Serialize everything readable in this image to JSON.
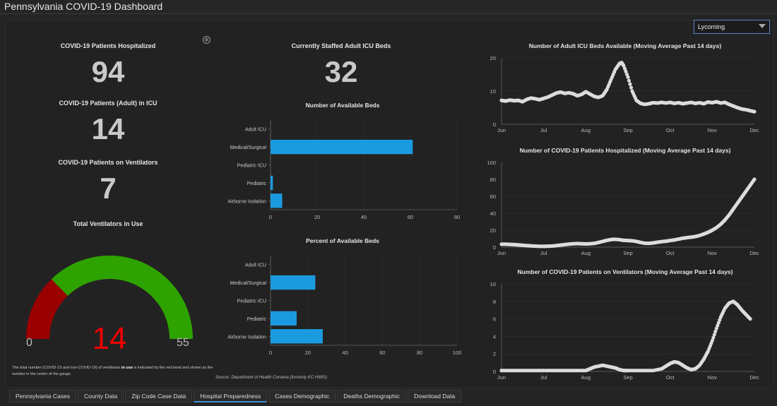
{
  "app": {
    "title": "Pennsylvania COVID-19 Dashboard"
  },
  "filter": {
    "county": "Lycoming"
  },
  "kpis": {
    "hospitalized": {
      "label": "COVID-19 Patients Hospitalized",
      "value": "94"
    },
    "icu": {
      "label": "COVID-19 Patients (Adult) in ICU",
      "value": "14"
    },
    "ventilators": {
      "label": "COVID-19 Patients on Ventilators",
      "value": "7"
    },
    "staffed_icu": {
      "label": "Currently Staffed Adult ICU Beds",
      "value": "32"
    }
  },
  "gauge": {
    "title": "Total Ventilators in Use",
    "value": "14",
    "min": "0",
    "max": "55",
    "value_num": 14,
    "max_num": 55,
    "red_band_end": 14,
    "colors": {
      "red": "#9b0000",
      "green": "#2ea300",
      "value": "#e00000"
    },
    "note_pre": "The total number (COVID-19 and non-COVID-19) of ventilators ",
    "note_bold": "in use",
    "note_post": " is indicated by the red band and shown as the number in the center of the gauge."
  },
  "source": "Source: Department of Health Corvena (formerly KC-HIMS)",
  "chart_data": [
    {
      "type": "bar",
      "orientation": "horizontal",
      "title": "Number of Available Beds",
      "categories": [
        "Adult ICU",
        "Medical/Surgical",
        "Pediatric ICU",
        "Pediatric",
        "Airborne Isolation"
      ],
      "values": [
        0,
        61,
        0,
        1,
        5
      ],
      "xlim": [
        0,
        80
      ],
      "xticks": [
        0,
        20,
        40,
        60,
        80
      ],
      "color": "#1a9be0"
    },
    {
      "type": "bar",
      "orientation": "horizontal",
      "title": "Percent of Available Beds",
      "categories": [
        "Adult ICU",
        "Medical/Surgical",
        "Pediatric ICU",
        "Pediatric",
        "Airborne Isolation"
      ],
      "values": [
        0,
        24,
        0,
        14,
        28
      ],
      "xlim": [
        0,
        100
      ],
      "xticks": [
        0,
        20,
        40,
        60,
        80,
        100
      ],
      "color": "#1a9be0"
    },
    {
      "type": "scatter",
      "title": "Number of Adult ICU Beds Available (Moving Average Past 14 days)",
      "xlabels": [
        "Jun",
        "Jul",
        "Aug",
        "Sep",
        "Oct",
        "Nov",
        "Dec"
      ],
      "ylim": [
        0,
        20
      ],
      "yticks": [
        0,
        10,
        20
      ],
      "points": [
        [
          0,
          7.2
        ],
        [
          0.1,
          7.0
        ],
        [
          0.2,
          7.3
        ],
        [
          0.3,
          7.1
        ],
        [
          0.4,
          7.2
        ],
        [
          0.5,
          6.8
        ],
        [
          0.6,
          7.5
        ],
        [
          0.7,
          7.9
        ],
        [
          0.8,
          7.7
        ],
        [
          0.9,
          7.4
        ],
        [
          1.0,
          7.8
        ],
        [
          1.1,
          8.2
        ],
        [
          1.2,
          8.8
        ],
        [
          1.3,
          9.4
        ],
        [
          1.4,
          9.7
        ],
        [
          1.5,
          9.3
        ],
        [
          1.6,
          9.5
        ],
        [
          1.7,
          9.2
        ],
        [
          1.8,
          8.6
        ],
        [
          1.9,
          9.0
        ],
        [
          2.0,
          9.8
        ],
        [
          2.1,
          9.1
        ],
        [
          2.2,
          8.4
        ],
        [
          2.3,
          8.1
        ],
        [
          2.4,
          8.6
        ],
        [
          2.5,
          10.5
        ],
        [
          2.6,
          13.5
        ],
        [
          2.7,
          16.5
        ],
        [
          2.8,
          18.3
        ],
        [
          2.85,
          18.6
        ],
        [
          2.9,
          17.6
        ],
        [
          3.0,
          14.2
        ],
        [
          3.1,
          10.0
        ],
        [
          3.2,
          7.2
        ],
        [
          3.3,
          6.3
        ],
        [
          3.4,
          6.0
        ],
        [
          3.5,
          6.2
        ],
        [
          3.6,
          6.5
        ],
        [
          3.7,
          6.4
        ],
        [
          3.8,
          6.6
        ],
        [
          3.9,
          6.4
        ],
        [
          4.0,
          6.6
        ],
        [
          4.1,
          6.3
        ],
        [
          4.2,
          6.5
        ],
        [
          4.3,
          6.2
        ],
        [
          4.4,
          6.4
        ],
        [
          4.5,
          6.6
        ],
        [
          4.6,
          6.3
        ],
        [
          4.7,
          6.5
        ],
        [
          4.8,
          6.2
        ],
        [
          4.9,
          6.7
        ],
        [
          5.0,
          6.5
        ],
        [
          5.1,
          6.8
        ],
        [
          5.2,
          6.4
        ],
        [
          5.3,
          6.6
        ],
        [
          5.4,
          6.0
        ],
        [
          5.5,
          5.5
        ],
        [
          5.6,
          5.0
        ],
        [
          5.7,
          4.6
        ],
        [
          5.8,
          4.4
        ],
        [
          5.9,
          4.1
        ],
        [
          6.0,
          3.8
        ]
      ],
      "color": "#dcdcdc"
    },
    {
      "type": "scatter",
      "title": "Number of COVID-19 Patients Hospitalized (Moving Average Past 14 days)",
      "xlabels": [
        "Jun",
        "Jul",
        "Aug",
        "Sep",
        "Oct",
        "Nov",
        "Dec"
      ],
      "ylim": [
        0,
        100
      ],
      "yticks": [
        0,
        20,
        40,
        60,
        80,
        100
      ],
      "points": [
        [
          0,
          3.5
        ],
        [
          0.1,
          3.5
        ],
        [
          0.2,
          3.2
        ],
        [
          0.3,
          3.0
        ],
        [
          0.4,
          2.6
        ],
        [
          0.5,
          2.2
        ],
        [
          0.6,
          1.8
        ],
        [
          0.7,
          1.5
        ],
        [
          0.8,
          1.2
        ],
        [
          0.9,
          1.0
        ],
        [
          1.0,
          1.0
        ],
        [
          1.1,
          1.1
        ],
        [
          1.2,
          1.3
        ],
        [
          1.3,
          1.8
        ],
        [
          1.4,
          2.4
        ],
        [
          1.5,
          3.0
        ],
        [
          1.6,
          3.6
        ],
        [
          1.7,
          4.0
        ],
        [
          1.8,
          4.2
        ],
        [
          1.9,
          4.0
        ],
        [
          2.0,
          3.8
        ],
        [
          2.1,
          4.0
        ],
        [
          2.2,
          4.5
        ],
        [
          2.3,
          5.5
        ],
        [
          2.4,
          6.8
        ],
        [
          2.5,
          8.0
        ],
        [
          2.6,
          9.0
        ],
        [
          2.7,
          9.2
        ],
        [
          2.8,
          8.8
        ],
        [
          2.9,
          8.0
        ],
        [
          3.0,
          7.8
        ],
        [
          3.1,
          7.5
        ],
        [
          3.2,
          6.8
        ],
        [
          3.3,
          5.5
        ],
        [
          3.4,
          4.6
        ],
        [
          3.5,
          4.5
        ],
        [
          3.6,
          5.0
        ],
        [
          3.7,
          5.8
        ],
        [
          3.8,
          6.5
        ],
        [
          3.9,
          7.0
        ],
        [
          4.0,
          7.8
        ],
        [
          4.1,
          8.5
        ],
        [
          4.2,
          9.5
        ],
        [
          4.3,
          10.5
        ],
        [
          4.4,
          11.2
        ],
        [
          4.5,
          11.8
        ],
        [
          4.6,
          12.5
        ],
        [
          4.7,
          13.8
        ],
        [
          4.8,
          15.5
        ],
        [
          4.9,
          17.5
        ],
        [
          5.0,
          20.0
        ],
        [
          5.1,
          23.0
        ],
        [
          5.2,
          27.0
        ],
        [
          5.3,
          32.0
        ],
        [
          5.4,
          38.0
        ],
        [
          5.5,
          45.0
        ],
        [
          5.6,
          52.0
        ],
        [
          5.7,
          59.0
        ],
        [
          5.8,
          66.0
        ],
        [
          5.9,
          73.0
        ],
        [
          6.0,
          80.0
        ]
      ],
      "color": "#dcdcdc"
    },
    {
      "type": "scatter",
      "title": "Number of COVID-19 Patients on Ventilators (Moving Average Past 14 days)",
      "xlabels": [
        "Jun",
        "Jul",
        "Aug",
        "Sep",
        "Oct",
        "Nov",
        "Dec"
      ],
      "ylim": [
        0,
        10
      ],
      "yticks": [
        0,
        2,
        4,
        6,
        8,
        10
      ],
      "points": [
        [
          0,
          0.1
        ],
        [
          0.2,
          0.1
        ],
        [
          0.4,
          0.1
        ],
        [
          0.6,
          0.1
        ],
        [
          0.8,
          0.1
        ],
        [
          1.0,
          0.1
        ],
        [
          1.2,
          0.1
        ],
        [
          1.4,
          0.1
        ],
        [
          1.6,
          0.1
        ],
        [
          1.8,
          0.1
        ],
        [
          2.0,
          0.1
        ],
        [
          2.1,
          0.3
        ],
        [
          2.2,
          0.5
        ],
        [
          2.3,
          0.6
        ],
        [
          2.4,
          0.7
        ],
        [
          2.5,
          0.6
        ],
        [
          2.6,
          0.5
        ],
        [
          2.7,
          0.4
        ],
        [
          2.8,
          0.2
        ],
        [
          2.9,
          0.1
        ],
        [
          3.0,
          0.1
        ],
        [
          3.2,
          0.1
        ],
        [
          3.4,
          0.1
        ],
        [
          3.6,
          0.1
        ],
        [
          3.8,
          0.3
        ],
        [
          3.9,
          0.6
        ],
        [
          4.0,
          0.9
        ],
        [
          4.1,
          1.1
        ],
        [
          4.2,
          1.0
        ],
        [
          4.3,
          0.7
        ],
        [
          4.4,
          0.4
        ],
        [
          4.5,
          0.2
        ],
        [
          4.6,
          0.3
        ],
        [
          4.7,
          0.7
        ],
        [
          4.8,
          1.4
        ],
        [
          4.9,
          2.3
        ],
        [
          5.0,
          3.5
        ],
        [
          5.1,
          4.9
        ],
        [
          5.2,
          6.2
        ],
        [
          5.3,
          7.2
        ],
        [
          5.4,
          7.8
        ],
        [
          5.5,
          8.0
        ],
        [
          5.6,
          7.6
        ],
        [
          5.7,
          7.0
        ],
        [
          5.8,
          6.5
        ],
        [
          5.9,
          6.0
        ]
      ],
      "color": "#dcdcdc"
    }
  ],
  "tabs": [
    "Pennsylvania Cases",
    "County Data",
    "Zip Code Case Data",
    "Hospital Preparedness",
    "Cases Demographic",
    "Deaths Demographic",
    "Download Data"
  ],
  "active_tab": 3
}
